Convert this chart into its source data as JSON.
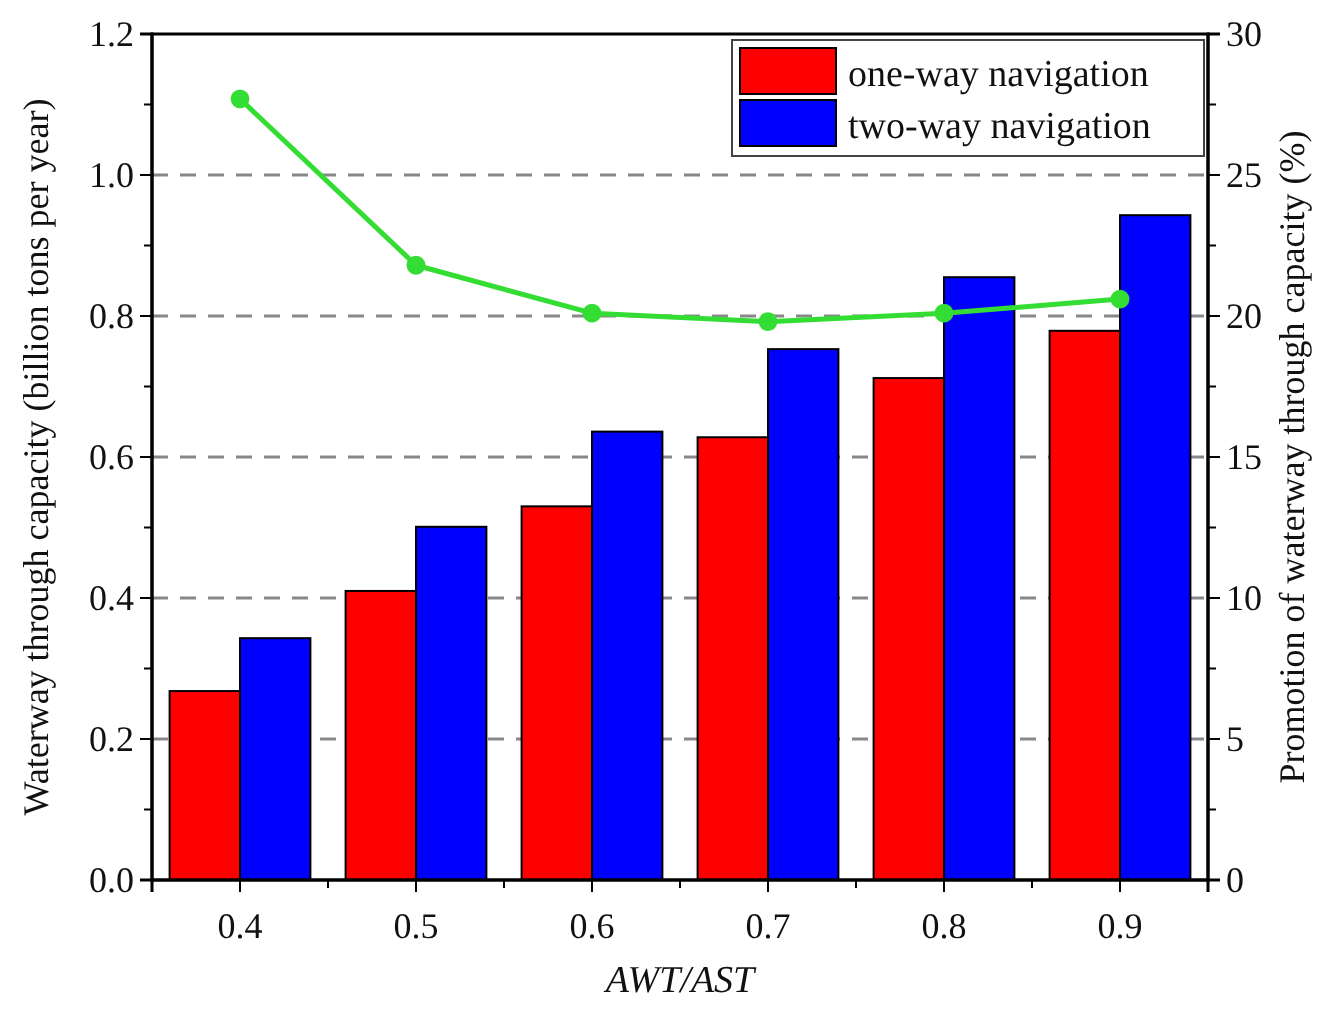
{
  "chart_data": {
    "type": "bar",
    "xlabel": "AWT/AST",
    "ylabel": "Waterway through capacity (billion tons per year)",
    "y2label": "Promotion of waterway through capacity (%)",
    "categories": [
      "0.4",
      "0.5",
      "0.6",
      "0.7",
      "0.8",
      "0.9"
    ],
    "series": [
      {
        "name": "one-way navigation",
        "color": "#ff0000",
        "values": [
          0.268,
          0.41,
          0.53,
          0.628,
          0.712,
          0.779
        ]
      },
      {
        "name": "two-way navigation",
        "color": "#0000ff",
        "values": [
          0.343,
          0.501,
          0.636,
          0.753,
          0.855,
          0.943
        ]
      },
      {
        "type": "line",
        "axis": "y2",
        "color": "#33dd33",
        "marker": "circle",
        "values": [
          27.7,
          21.8,
          20.1,
          19.8,
          20.1,
          20.6
        ]
      }
    ],
    "ylim": [
      0,
      1.2
    ],
    "yticks": [
      {
        "value": 0,
        "label": "0.0"
      },
      0.2,
      0.4,
      0.6,
      0.8,
      {
        "value": 1,
        "label": "1.0"
      },
      1.2
    ],
    "y2lim": [
      0,
      30
    ],
    "y2ticks": [
      0,
      5,
      10,
      15,
      20,
      25,
      30
    ],
    "grid": "y",
    "legend": "top right"
  }
}
